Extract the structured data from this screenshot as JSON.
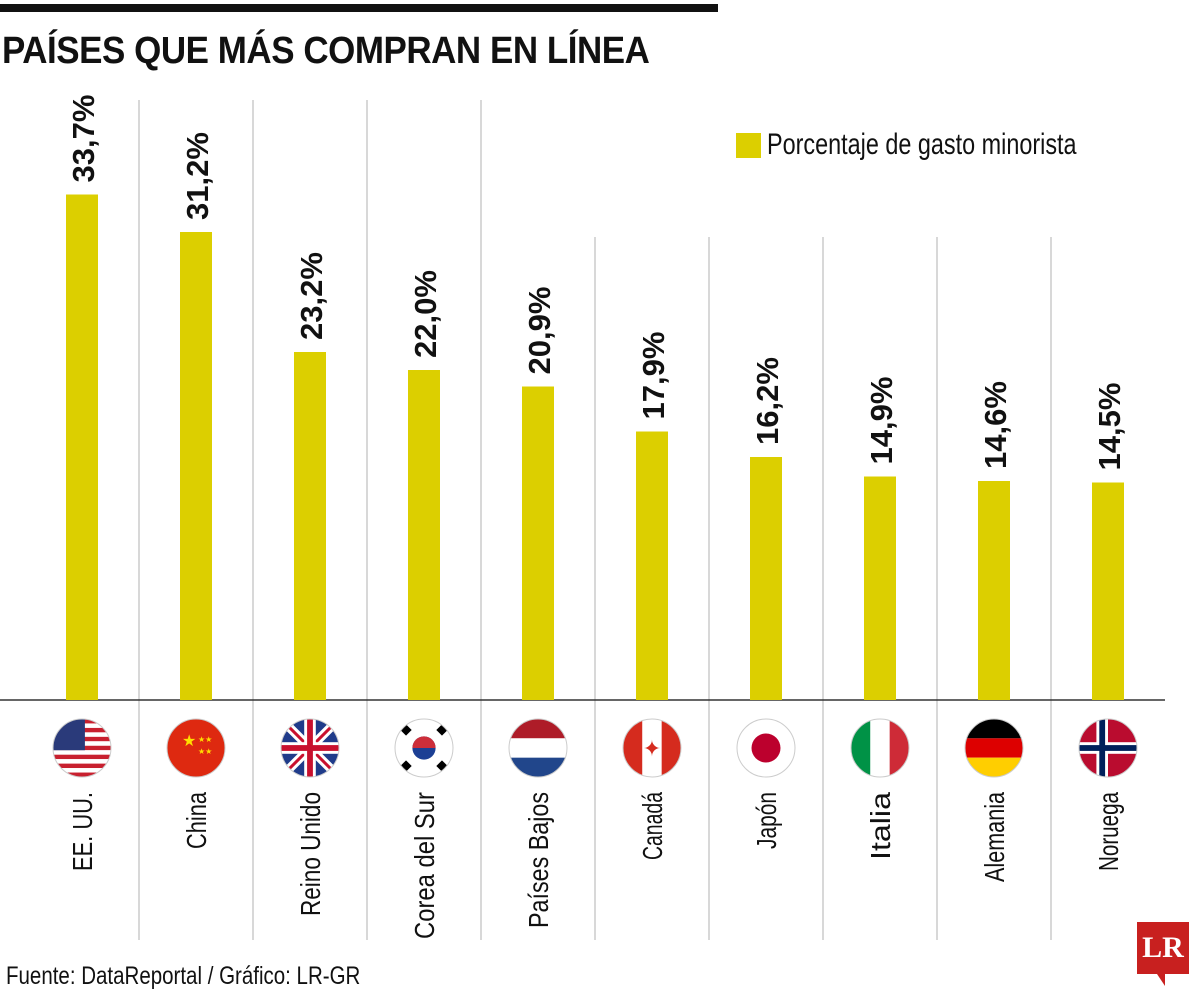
{
  "title": "PAÍSES QUE MÁS COMPRAN EN LÍNEA",
  "source": "Fuente: DataReportal / Gráfico: LR-GR",
  "logo": "LR",
  "colors": {
    "bar": "#dccf00",
    "grid": "#cccccc",
    "axis": "#333333"
  },
  "chart_data": {
    "type": "bar",
    "title": "PAÍSES QUE MÁS COMPRAN EN LÍNEA",
    "legend": {
      "label": "Porcentaje de gasto minorista",
      "position": "top-right"
    },
    "categories": [
      "EE. UU.",
      "China",
      "Reino Unido",
      "Corea del Sur",
      "Países Bajos",
      "Canadá",
      "Japón",
      "Italia",
      "Alemania",
      "Noruega"
    ],
    "flags": [
      "us-flag",
      "china-flag",
      "uk-flag",
      "south-korea-flag",
      "netherlands-flag",
      "canada-flag",
      "japan-flag",
      "italy-flag",
      "germany-flag",
      "norway-flag"
    ],
    "values": [
      33.7,
      31.2,
      23.2,
      22.0,
      20.9,
      17.9,
      16.2,
      14.9,
      14.6,
      14.5
    ],
    "labels": [
      "33,7%",
      "31,2%",
      "23,2%",
      "22,0%",
      "20,9%",
      "17,9%",
      "16,2%",
      "14,9%",
      "14,6%",
      "14,5%"
    ],
    "unit": "%",
    "ylim": [
      0,
      35
    ],
    "grid": false
  }
}
